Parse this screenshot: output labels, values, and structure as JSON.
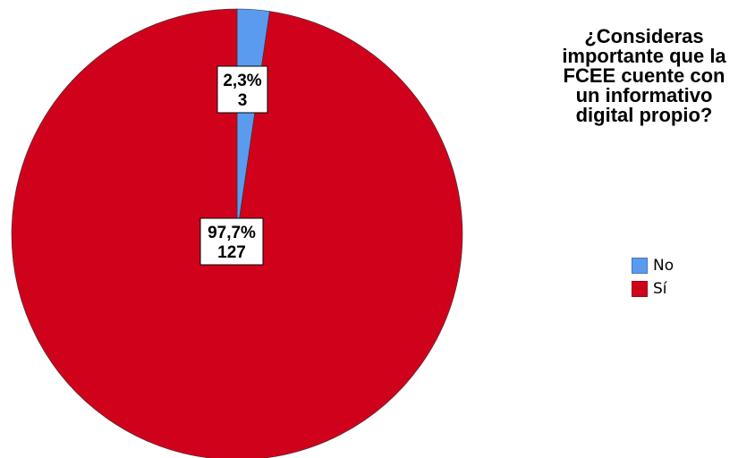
{
  "chart_data": {
    "type": "pie",
    "legend_title": "¿Consideras importante que la FCEE cuente con un informativo digital propio?",
    "legend_position": "right",
    "slices": [
      {
        "label": "No",
        "percent_label": "2,3%",
        "count_label": "3",
        "value": 3,
        "color": "#5b9bef"
      },
      {
        "label": "Sí",
        "percent_label": "97,7%",
        "count_label": "127",
        "value": 127,
        "color": "#d0021b"
      }
    ]
  }
}
